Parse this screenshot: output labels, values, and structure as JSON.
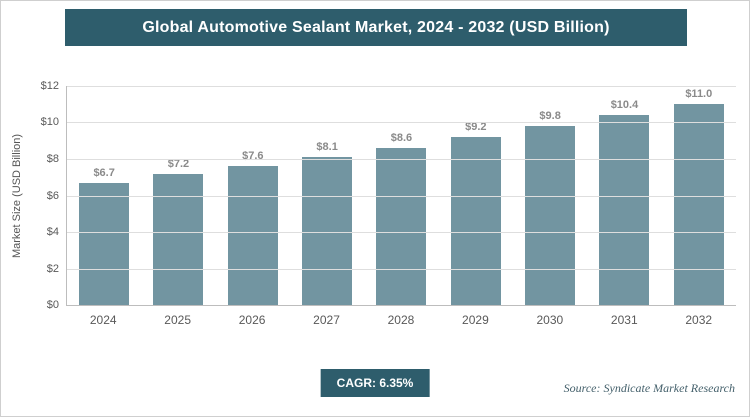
{
  "header": {
    "title": "Global Automotive Sealant Market, 2024 - 2032 (USD Billion)"
  },
  "chart_data": {
    "type": "bar",
    "title": "Global Automotive Sealant Market, 2024 - 2032 (USD Billion)",
    "categories": [
      "2024",
      "2025",
      "2026",
      "2027",
      "2028",
      "2029",
      "2030",
      "2031",
      "2032"
    ],
    "values": [
      6.7,
      7.2,
      7.6,
      8.1,
      8.6,
      9.2,
      9.8,
      10.4,
      11.0
    ],
    "value_labels": [
      "$6.7",
      "$7.2",
      "$7.6",
      "$8.1",
      "$8.6",
      "$9.2",
      "$9.8",
      "$10.4",
      "$11.0"
    ],
    "xlabel": "",
    "ylabel": "Market Size (USD Billion)",
    "ylim": [
      0,
      12
    ],
    "yticks": [
      0,
      2,
      4,
      6,
      8,
      10,
      12
    ],
    "ytick_labels": [
      "$0",
      "$2",
      "$4",
      "$6",
      "$8",
      "$10",
      "$12"
    ],
    "grid": "horizontal",
    "legend": "none"
  },
  "footer": {
    "cagr": "CAGR: 6.35%",
    "source": "Source: Syndicate Market Research"
  },
  "colors": {
    "accent": "#2E5D6C",
    "bar": "#7295A1",
    "value_label": "#8a8a8a"
  }
}
